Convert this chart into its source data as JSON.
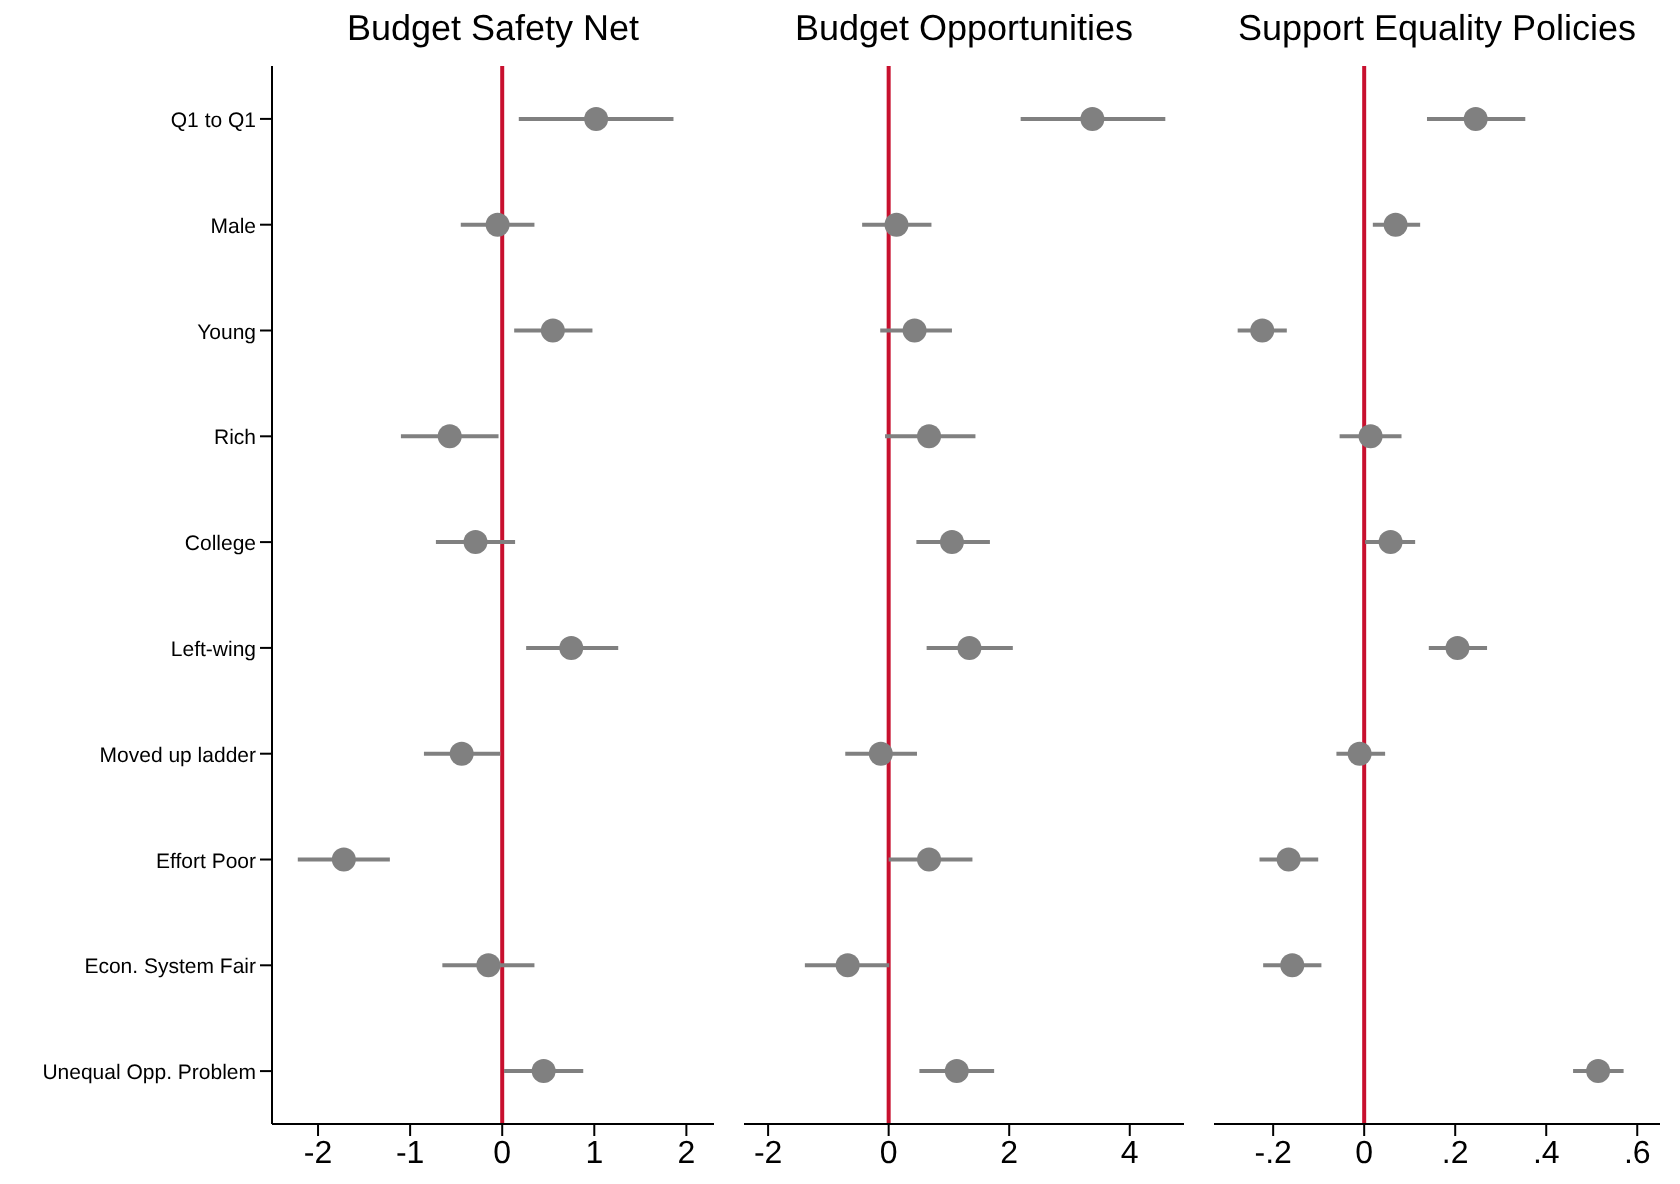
{
  "chart_data": [
    {
      "type": "scatter",
      "title": "Budget Safety Net",
      "orientation": "horizontal",
      "marker": "circle",
      "categories": [
        "Q1 to Q1",
        "Male",
        "Young",
        "Rich",
        "College",
        "Left-wing",
        "Moved up ladder",
        "Effort Poor",
        "Econ. System Fair",
        "Unequal Opp. Problem"
      ],
      "series": [
        {
          "color": "#808080",
          "values": [
            1.02,
            -0.05,
            0.55,
            -0.57,
            -0.29,
            0.75,
            -0.44,
            -1.72,
            -0.15,
            0.45
          ],
          "errors": [
            [
              0.18,
              1.86
            ],
            [
              -0.45,
              0.35
            ],
            [
              0.13,
              0.98
            ],
            [
              -1.1,
              -0.04
            ],
            [
              -0.72,
              0.14
            ],
            [
              0.26,
              1.26
            ],
            [
              -0.85,
              -0.02
            ],
            [
              -2.22,
              -1.22
            ],
            [
              -0.65,
              0.35
            ],
            [
              0.02,
              0.88
            ]
          ]
        }
      ],
      "xlim": [
        -2.5,
        2.3
      ],
      "xticks": [
        -2,
        -1,
        0,
        1,
        2
      ],
      "ref_lines": [
        {
          "axis": "x",
          "value": 0,
          "color": "#c8102e"
        }
      ]
    },
    {
      "type": "scatter",
      "title": "Budget Opportunities",
      "orientation": "horizontal",
      "marker": "circle",
      "tick_labels": "x",
      "categories": [
        null,
        null,
        null,
        null,
        null,
        null,
        null,
        null,
        null,
        null
      ],
      "series": [
        {
          "color": "#808080",
          "values": [
            3.38,
            0.13,
            0.43,
            0.67,
            1.05,
            1.34,
            -0.13,
            0.67,
            -0.68,
            1.13
          ],
          "errors": [
            [
              2.19,
              4.59
            ],
            [
              -0.44,
              0.71
            ],
            [
              -0.14,
              1.05
            ],
            [
              -0.06,
              1.44
            ],
            [
              0.46,
              1.68
            ],
            [
              0.63,
              2.06
            ],
            [
              -0.72,
              0.47
            ],
            [
              0,
              1.39
            ],
            [
              -1.39,
              0.01
            ],
            [
              0.51,
              1.75
            ]
          ]
        }
      ],
      "xlim": [
        -2.4,
        4.9
      ],
      "xticks": [
        -2,
        0,
        2,
        4
      ],
      "ref_lines": [
        {
          "axis": "x",
          "value": 0,
          "color": "#c8102e"
        }
      ]
    },
    {
      "type": "scatter",
      "title": "Support Equality Policies",
      "orientation": "horizontal",
      "marker": "circle",
      "tick_labels": "x",
      "categories": [
        null,
        null,
        null,
        null,
        null,
        null,
        null,
        null,
        null,
        null
      ],
      "series": [
        {
          "color": "#808080",
          "values": [
            0.245,
            0.069,
            -0.224,
            0.014,
            0.058,
            0.205,
            -0.01,
            -0.166,
            -0.158,
            0.514
          ],
          "errors": [
            [
              0.138,
              0.354
            ],
            [
              0.019,
              0.123
            ],
            [
              -0.278,
              -0.17
            ],
            [
              -0.054,
              0.082
            ],
            [
              0.002,
              0.112
            ],
            [
              0.142,
              0.27
            ],
            [
              -0.061,
              0.046
            ],
            [
              -0.23,
              -0.101
            ],
            [
              -0.222,
              -0.094
            ],
            [
              0.459,
              0.57
            ]
          ]
        }
      ],
      "xlim": [
        -0.33,
        0.65
      ],
      "xticks": [
        {
          "value": -0.2,
          "label": "-.2"
        },
        0,
        {
          "value": 0.2,
          "label": ".2"
        },
        {
          "value": 0.4,
          "label": ".4"
        },
        {
          "value": 0.6,
          "label": ".6"
        }
      ],
      "ref_lines": [
        {
          "axis": "x",
          "value": 0,
          "color": "#c8102e"
        }
      ]
    }
  ]
}
